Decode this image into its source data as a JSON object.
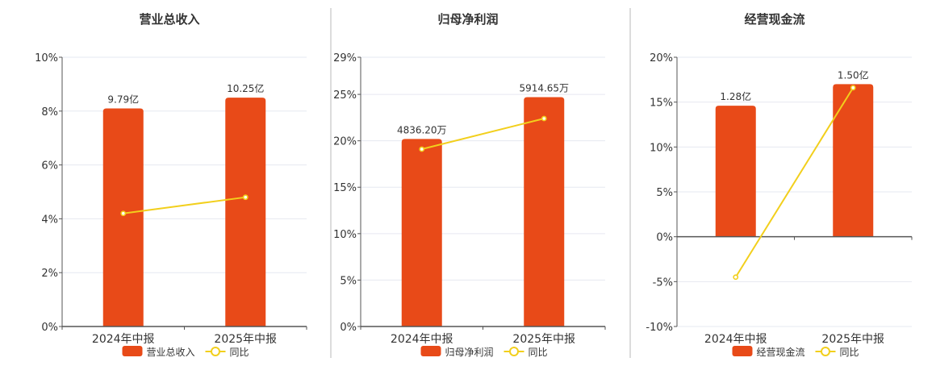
{
  "colors": {
    "bar": "#e84a18",
    "line": "#f2cf1c",
    "grid": "#e6e8f0",
    "axis": "#555555",
    "divider": "#b8b8b8",
    "text": "#333333"
  },
  "chart_data": [
    {
      "type": "bar",
      "title": "营业总收入",
      "categories": [
        "2024年中报",
        "2025年中报"
      ],
      "series": [
        {
          "name": "营业总收入",
          "type": "bar",
          "values": [
            8.1,
            8.5
          ],
          "labels": [
            "9.79亿",
            "10.25亿"
          ]
        },
        {
          "name": "同比",
          "type": "line",
          "values": [
            4.2,
            4.8
          ]
        }
      ],
      "ylim": [
        0,
        10
      ],
      "yticks": [
        0,
        2,
        4,
        6,
        8,
        10
      ],
      "ytick_labels": [
        "0%",
        "2%",
        "4%",
        "6%",
        "8%",
        "10%"
      ],
      "grid": true,
      "legend": "bottom"
    },
    {
      "type": "bar",
      "title": "归母净利润",
      "categories": [
        "2024年中报",
        "2025年中报"
      ],
      "series": [
        {
          "name": "归母净利润",
          "type": "bar",
          "values": [
            20.2,
            24.7
          ],
          "labels": [
            "4836.20万",
            "5914.65万"
          ]
        },
        {
          "name": "同比",
          "type": "line",
          "values": [
            19.1,
            22.4
          ]
        }
      ],
      "ylim": [
        0,
        29
      ],
      "yticks": [
        0,
        5,
        10,
        15,
        20,
        25,
        29
      ],
      "ytick_labels": [
        "0%",
        "5%",
        "10%",
        "15%",
        "20%",
        "25%",
        "29%"
      ],
      "grid": true,
      "legend": "bottom"
    },
    {
      "type": "bar",
      "title": "经营现金流",
      "categories": [
        "2024年中报",
        "2025年中报"
      ],
      "series": [
        {
          "name": "经营现金流",
          "type": "bar",
          "values": [
            14.6,
            17.0
          ],
          "labels": [
            "1.28亿",
            "1.50亿"
          ]
        },
        {
          "name": "同比",
          "type": "line",
          "values": [
            -4.5,
            16.6
          ]
        }
      ],
      "ylim": [
        -10,
        20
      ],
      "yticks": [
        -10,
        -5,
        0,
        5,
        10,
        15,
        20
      ],
      "ytick_labels": [
        "-10%",
        "-5%",
        "0%",
        "5%",
        "10%",
        "15%",
        "20%"
      ],
      "grid": true,
      "legend": "bottom"
    }
  ]
}
